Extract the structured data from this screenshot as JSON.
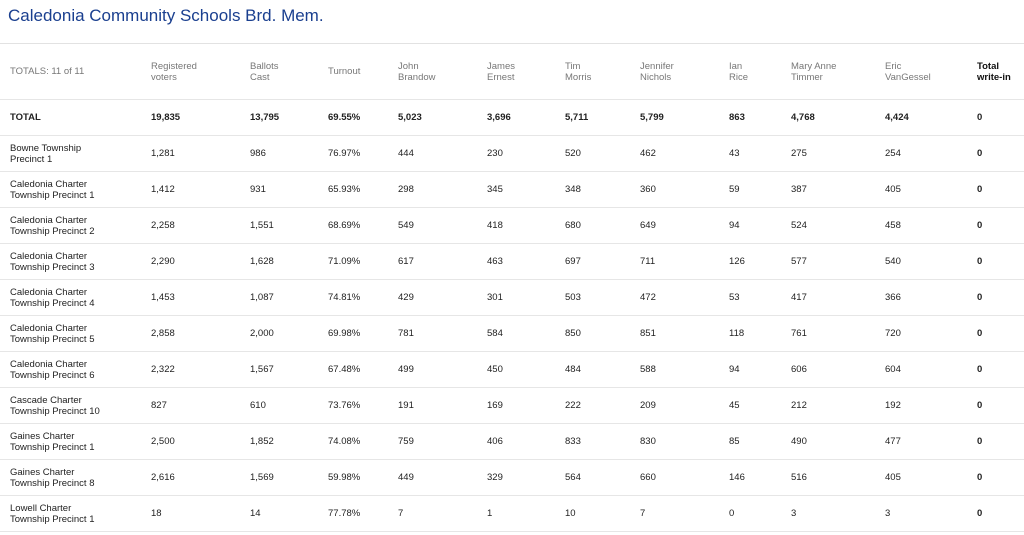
{
  "page": {
    "title": "Caledonia Community Schools Brd. Mem."
  },
  "table": {
    "totals_label": "TOTALS: 11 of 11",
    "headers": [
      {
        "line1": "Registered",
        "line2": "voters"
      },
      {
        "line1": "Ballots",
        "line2": "Cast"
      },
      {
        "line1": "Turnout",
        "line2": ""
      },
      {
        "line1": "John",
        "line2": "Brandow"
      },
      {
        "line1": "James",
        "line2": "Ernest"
      },
      {
        "line1": "Tim",
        "line2": "Morris"
      },
      {
        "line1": "Jennifer",
        "line2": "Nichols"
      },
      {
        "line1": "Ian",
        "line2": "Rice"
      },
      {
        "line1": "Mary Anne",
        "line2": "Timmer"
      },
      {
        "line1": "Eric",
        "line2": "VanGessel"
      },
      {
        "line1": "Total",
        "line2": "write-in"
      }
    ],
    "total_row": {
      "label": "TOTAL",
      "values": [
        "19,835",
        "13,795",
        "69.55%",
        "5,023",
        "3,696",
        "5,711",
        "5,799",
        "863",
        "4,768",
        "4,424",
        "0"
      ]
    },
    "rows": [
      {
        "name1": "Bowne Township",
        "name2": "Precinct 1",
        "values": [
          "1,281",
          "986",
          "76.97%",
          "444",
          "230",
          "520",
          "462",
          "43",
          "275",
          "254",
          "0"
        ]
      },
      {
        "name1": "Caledonia Charter",
        "name2": "Township Precinct 1",
        "values": [
          "1,412",
          "931",
          "65.93%",
          "298",
          "345",
          "348",
          "360",
          "59",
          "387",
          "405",
          "0"
        ]
      },
      {
        "name1": "Caledonia Charter",
        "name2": "Township Precinct 2",
        "values": [
          "2,258",
          "1,551",
          "68.69%",
          "549",
          "418",
          "680",
          "649",
          "94",
          "524",
          "458",
          "0"
        ]
      },
      {
        "name1": "Caledonia Charter",
        "name2": "Township Precinct 3",
        "values": [
          "2,290",
          "1,628",
          "71.09%",
          "617",
          "463",
          "697",
          "711",
          "126",
          "577",
          "540",
          "0"
        ]
      },
      {
        "name1": "Caledonia Charter",
        "name2": "Township Precinct 4",
        "values": [
          "1,453",
          "1,087",
          "74.81%",
          "429",
          "301",
          "503",
          "472",
          "53",
          "417",
          "366",
          "0"
        ]
      },
      {
        "name1": "Caledonia Charter",
        "name2": "Township Precinct 5",
        "values": [
          "2,858",
          "2,000",
          "69.98%",
          "781",
          "584",
          "850",
          "851",
          "118",
          "761",
          "720",
          "0"
        ]
      },
      {
        "name1": "Caledonia Charter",
        "name2": "Township Precinct 6",
        "values": [
          "2,322",
          "1,567",
          "67.48%",
          "499",
          "450",
          "484",
          "588",
          "94",
          "606",
          "604",
          "0"
        ]
      },
      {
        "name1": "Cascade Charter",
        "name2": "Township Precinct 10",
        "values": [
          "827",
          "610",
          "73.76%",
          "191",
          "169",
          "222",
          "209",
          "45",
          "212",
          "192",
          "0"
        ]
      },
      {
        "name1": "Gaines Charter",
        "name2": "Township Precinct 1",
        "values": [
          "2,500",
          "1,852",
          "74.08%",
          "759",
          "406",
          "833",
          "830",
          "85",
          "490",
          "477",
          "0"
        ]
      },
      {
        "name1": "Gaines Charter",
        "name2": "Township Precinct 8",
        "values": [
          "2,616",
          "1,569",
          "59.98%",
          "449",
          "329",
          "564",
          "660",
          "146",
          "516",
          "405",
          "0"
        ]
      },
      {
        "name1": "Lowell Charter",
        "name2": "Township Precinct 1",
        "values": [
          "18",
          "14",
          "77.78%",
          "7",
          "1",
          "10",
          "7",
          "0",
          "3",
          "3",
          "0"
        ]
      }
    ]
  }
}
